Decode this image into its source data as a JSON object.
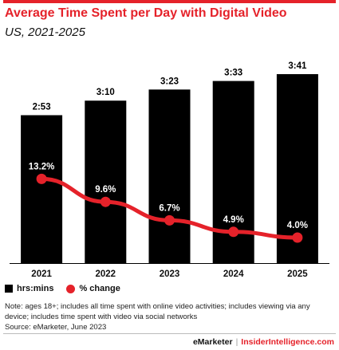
{
  "title": "Average Time Spent per Day with Digital Video",
  "subtitle": "US, 2021-2025",
  "legend": {
    "bars": "hrs:mins",
    "line": "% change"
  },
  "note": "Note: ages 18+; includes all time spent with online video activities; includes viewing via any device; includes time spent with video via social networks",
  "source": "Source: eMarketer, June 2023",
  "footer": {
    "brand1": "eMarketer",
    "separator": "|",
    "brand2": "InsiderIntelligence.com"
  },
  "colors": {
    "bar": "#000000",
    "line": "#e5222a",
    "accent": "#e5222a",
    "bar_label": "#000000",
    "point_label": "#ffffff"
  },
  "chart_data": {
    "type": "bar",
    "categories": [
      "2021",
      "2022",
      "2023",
      "2024",
      "2025"
    ],
    "series": [
      {
        "name": "hrs:mins",
        "type": "bar",
        "values": [
          173,
          190,
          203,
          213,
          221
        ],
        "labels": [
          "2:53",
          "3:10",
          "3:23",
          "3:33",
          "3:41"
        ]
      },
      {
        "name": "% change",
        "type": "line",
        "values": [
          13.2,
          9.6,
          6.7,
          4.9,
          4.0
        ],
        "labels": [
          "13.2%",
          "9.6%",
          "6.7%",
          "4.9%",
          "4.0%"
        ]
      }
    ],
    "title": "Average Time Spent per Day with Digital Video",
    "subtitle": "US, 2021-2025",
    "xlabel": "",
    "ylabel": "",
    "ylim_bars": [
      0,
      221
    ],
    "ylim_line": [
      0,
      25
    ],
    "legend_position": "bottom-left",
    "grid": false
  }
}
